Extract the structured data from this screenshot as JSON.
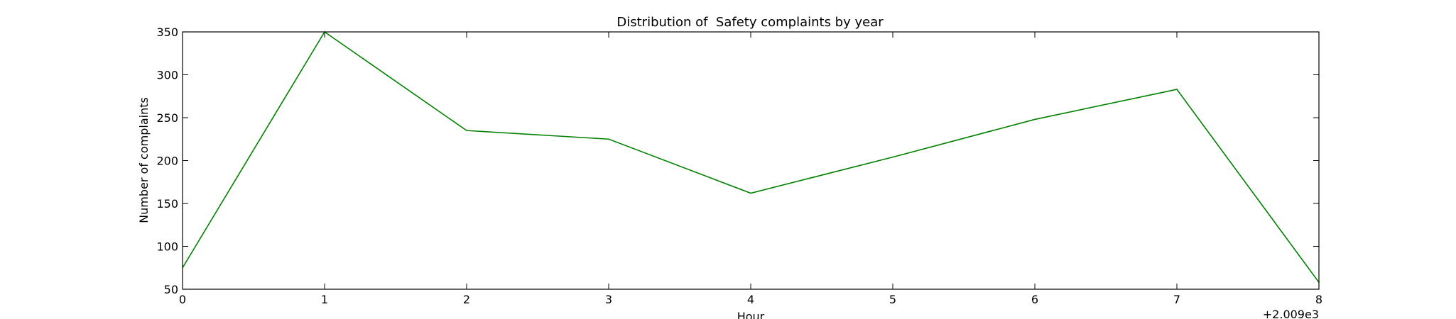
{
  "chart_data": {
    "type": "line",
    "title": "Distribution of  Safety complaints by year",
    "xlabel": "Hour",
    "ylabel": "Number of complaints",
    "x_offset_label": "+2.009e3",
    "xlim": [
      0,
      8
    ],
    "ylim": [
      50,
      350
    ],
    "x_ticks": [
      0,
      1,
      2,
      3,
      4,
      5,
      6,
      7,
      8
    ],
    "y_ticks": [
      50,
      100,
      150,
      200,
      250,
      300,
      350
    ],
    "grid": false,
    "legend": "none",
    "series": [
      {
        "color": "#008000",
        "x": [
          0,
          1,
          2,
          3,
          4,
          5,
          6,
          7,
          8
        ],
        "values": [
          75,
          350,
          235,
          225,
          162,
          204,
          248,
          283,
          58
        ]
      }
    ]
  }
}
